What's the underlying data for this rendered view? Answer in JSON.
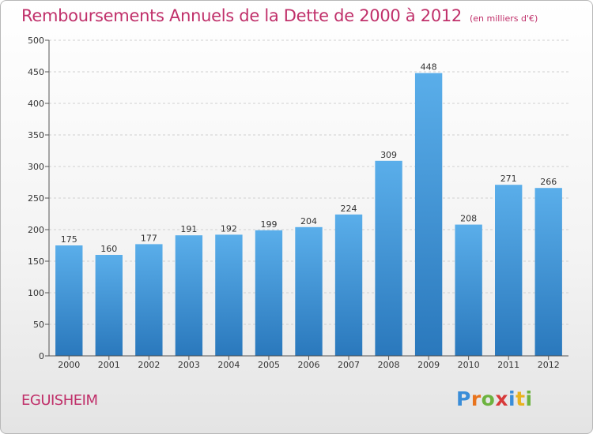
{
  "title": "Remboursements Annuels de la Dette de 2000 à 2012",
  "unit_note": "(en milliers d'€)",
  "town": "EGUISHEIM",
  "logo": {
    "letters": [
      "P",
      "r",
      "o",
      "x",
      "i",
      "t",
      "i"
    ],
    "colors": [
      "#3a8dd8",
      "#e8741e",
      "#6db33f",
      "#d73a3a",
      "#3a8dd8",
      "#e8b21e",
      "#6db33f"
    ]
  },
  "chart_data": {
    "type": "bar",
    "categories": [
      "2000",
      "2001",
      "2002",
      "2003",
      "2004",
      "2005",
      "2006",
      "2007",
      "2008",
      "2009",
      "2010",
      "2011",
      "2012"
    ],
    "values": [
      175,
      160,
      177,
      191,
      192,
      199,
      204,
      224,
      309,
      448,
      208,
      271,
      266
    ],
    "value_labels": [
      "175",
      "160",
      "177",
      "191",
      "192",
      "199",
      "204",
      "224",
      "309",
      "448",
      "208",
      "271",
      "266"
    ],
    "ylim": [
      0,
      500
    ],
    "yticks": [
      "0",
      "50",
      "100",
      "150",
      "200",
      "250",
      "300",
      "350",
      "400",
      "450",
      "500"
    ],
    "grid": true,
    "bar_color": "#4a9fe0"
  }
}
